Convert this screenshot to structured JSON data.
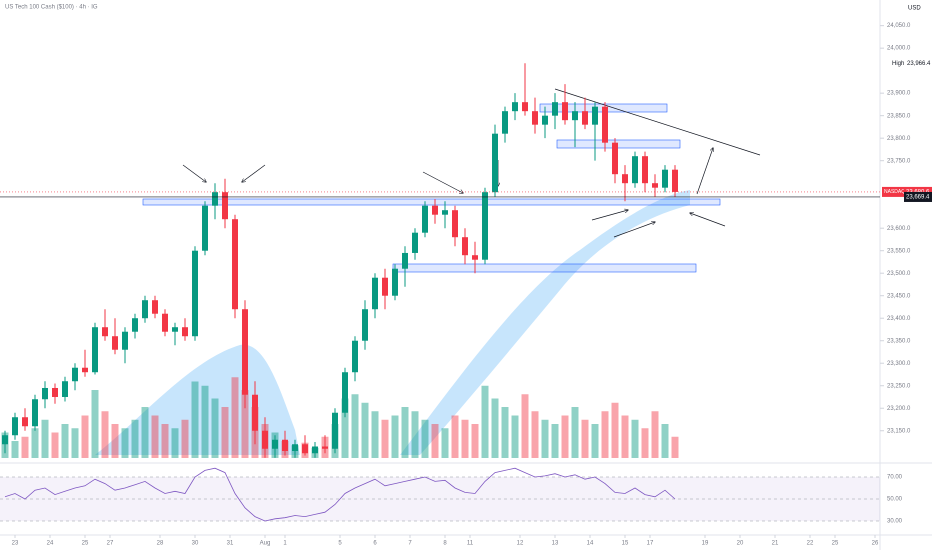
{
  "chart_data": {
    "type": "candlestick",
    "title": "US Tech 100 Cash ($100) · 4h · IG",
    "currency": "USD",
    "up_color": "#089981",
    "down_color": "#f23645",
    "ylim": [
      23085,
      24107
    ],
    "yticks": [
      {
        "value": 23150,
        "label": "23,150.0"
      },
      {
        "value": 23200,
        "label": "23,200.0"
      },
      {
        "value": 23250,
        "label": "23,250.0"
      },
      {
        "value": 23300,
        "label": "23,300.0"
      },
      {
        "value": 23350,
        "label": "23,350.0"
      },
      {
        "value": 23400,
        "label": "23,400.0"
      },
      {
        "value": 23450,
        "label": "23,450.0"
      },
      {
        "value": 23500,
        "label": "23,500.0"
      },
      {
        "value": 23550,
        "label": "23,550.0"
      },
      {
        "value": 23600,
        "label": "23,600.0"
      },
      {
        "value": 23750,
        "label": "23,750.0"
      },
      {
        "value": 23800,
        "label": "23,800.0"
      },
      {
        "value": 23850,
        "label": "23,850.0"
      },
      {
        "value": 23900,
        "label": "23,900.0"
      },
      {
        "value": 24000,
        "label": "24,000.0"
      },
      {
        "value": 24050,
        "label": "24,050.0"
      }
    ],
    "xlim": [
      -0.5,
      87.5
    ],
    "xticks": [
      {
        "value": 1,
        "label": "23"
      },
      {
        "value": 4.5,
        "label": "24"
      },
      {
        "value": 8,
        "label": "25"
      },
      {
        "value": 10.5,
        "label": "27"
      },
      {
        "value": 15.5,
        "label": "28"
      },
      {
        "value": 19,
        "label": "30"
      },
      {
        "value": 22.5,
        "label": "31"
      },
      {
        "value": 26,
        "label": "Aug"
      },
      {
        "value": 28,
        "label": "1"
      },
      {
        "value": 33.5,
        "label": "5"
      },
      {
        "value": 37,
        "label": "6"
      },
      {
        "value": 40.5,
        "label": "7"
      },
      {
        "value": 44,
        "label": "8"
      },
      {
        "value": 46.5,
        "label": "11"
      },
      {
        "value": 51.5,
        "label": "12"
      },
      {
        "value": 55,
        "label": "13"
      },
      {
        "value": 58.5,
        "label": "14"
      },
      {
        "value": 62,
        "label": "15"
      },
      {
        "value": 64.5,
        "label": "17"
      },
      {
        "value": 70,
        "label": "19"
      },
      {
        "value": 73.5,
        "label": "20"
      },
      {
        "value": 77,
        "label": "21"
      },
      {
        "value": 80.5,
        "label": "22"
      },
      {
        "value": 83,
        "label": "25"
      },
      {
        "value": 87,
        "label": "26"
      }
    ],
    "open": [
      23120,
      23140,
      23180,
      23160,
      23220,
      23245,
      23225,
      23260,
      23290,
      23280,
      23380,
      23360,
      23330,
      23370,
      23400,
      23440,
      23410,
      23370,
      23380,
      23360,
      23550,
      23650,
      23680,
      23620,
      23420,
      23230,
      23150,
      23110,
      23130,
      23105,
      23120,
      23100,
      23115,
      23110,
      23190,
      23280,
      23350,
      23420,
      23490,
      23450,
      23510,
      23545,
      23590,
      23650,
      23630,
      23640,
      23580,
      23540,
      23530,
      23680,
      23810,
      23860,
      23880,
      23860,
      23830,
      23850,
      23880,
      23840,
      23860,
      23830,
      23870,
      23790,
      23720,
      23700,
      23760,
      23700,
      23690,
      23730
    ],
    "high": [
      23150,
      23190,
      23200,
      23230,
      23260,
      23255,
      23270,
      23300,
      23330,
      23390,
      23420,
      23400,
      23380,
      23410,
      23450,
      23450,
      23420,
      23390,
      23400,
      23560,
      23660,
      23700,
      23710,
      23630,
      23440,
      23260,
      23180,
      23140,
      23150,
      23130,
      23140,
      23125,
      23140,
      23200,
      23290,
      23360,
      23440,
      23500,
      23510,
      23520,
      23560,
      23600,
      23660,
      23665,
      23660,
      23650,
      23600,
      23570,
      23690,
      23830,
      23870,
      23900,
      23966.4,
      23890,
      23870,
      23900,
      23920,
      23880,
      23890,
      23880,
      23880,
      23800,
      23740,
      23770,
      23770,
      23720,
      23740,
      23740
    ],
    "low": [
      23100,
      23130,
      23150,
      23150,
      23200,
      23210,
      23215,
      23240,
      23270,
      23275,
      23350,
      23320,
      23300,
      23355,
      23390,
      23400,
      23360,
      23340,
      23350,
      23350,
      23540,
      23620,
      23600,
      23400,
      23200,
      23120,
      23090,
      23090,
      23095,
      23090,
      23095,
      23090,
      23100,
      23100,
      23180,
      23260,
      23330,
      23400,
      23420,
      23440,
      23470,
      23530,
      23580,
      23610,
      23600,
      23560,
      23520,
      23500,
      23520,
      23670,
      23790,
      23840,
      23850,
      23810,
      23800,
      23820,
      23830,
      23780,
      23820,
      23750,
      23770,
      23700,
      23660,
      23690,
      23680,
      23670,
      23680,
      23669.4
    ],
    "close": [
      23140,
      23180,
      23160,
      23220,
      23245,
      23225,
      23260,
      23290,
      23280,
      23380,
      23360,
      23330,
      23370,
      23400,
      23440,
      23410,
      23370,
      23380,
      23360,
      23550,
      23650,
      23680,
      23620,
      23420,
      23230,
      23150,
      23110,
      23130,
      23105,
      23120,
      23100,
      23115,
      23110,
      23190,
      23280,
      23350,
      23420,
      23490,
      23450,
      23510,
      23545,
      23590,
      23650,
      23630,
      23640,
      23580,
      23540,
      23530,
      23680,
      23810,
      23860,
      23880,
      23860,
      23830,
      23850,
      23880,
      23840,
      23860,
      23830,
      23870,
      23790,
      23720,
      23700,
      23760,
      23700,
      23690,
      23730,
      23680.6
    ],
    "volume": [
      30,
      20,
      25,
      35,
      45,
      30,
      40,
      35,
      50,
      80,
      55,
      40,
      35,
      45,
      60,
      50,
      40,
      35,
      45,
      90,
      85,
      70,
      60,
      95,
      80,
      60,
      40,
      30,
      20,
      15,
      18,
      12,
      25,
      40,
      70,
      75,
      65,
      55,
      45,
      50,
      60,
      55,
      45,
      40,
      35,
      50,
      45,
      40,
      85,
      70,
      60,
      50,
      75,
      55,
      45,
      40,
      50,
      60,
      45,
      40,
      55,
      65,
      50,
      45,
      35,
      55,
      40,
      25
    ],
    "volume_lim": [
      0,
      100
    ],
    "rsi": [
      52,
      55,
      50,
      58,
      60,
      54,
      57,
      60,
      62,
      68,
      64,
      58,
      60,
      63,
      66,
      60,
      55,
      57,
      55,
      70,
      76,
      78,
      74,
      55,
      42,
      34,
      30,
      32,
      33,
      35,
      34,
      36,
      38,
      45,
      55,
      60,
      64,
      68,
      62,
      64,
      66,
      68,
      70,
      66,
      67,
      60,
      56,
      55,
      66,
      74,
      76,
      78,
      74,
      70,
      71,
      73,
      70,
      72,
      68,
      70,
      64,
      56,
      55,
      60,
      54,
      52,
      58,
      50
    ],
    "rsi_color": "#7e57c2",
    "rsi_lim": [
      20,
      80
    ],
    "rsi_ticks": [
      {
        "value": 70,
        "label": "70.00"
      },
      {
        "value": 50,
        "label": "50.00"
      },
      {
        "value": 30,
        "label": "30.00"
      }
    ],
    "price_tags": [
      {
        "name": "NASDAQ",
        "value": 23680.6,
        "label": "23,680.6",
        "color": "#f23645"
      },
      {
        "value": 23669.4,
        "label": "23,669.4",
        "color": "#131722"
      },
      {
        "name": "High",
        "value": 23966.4,
        "label": "23,966.4",
        "color": "#131722"
      }
    ]
  }
}
